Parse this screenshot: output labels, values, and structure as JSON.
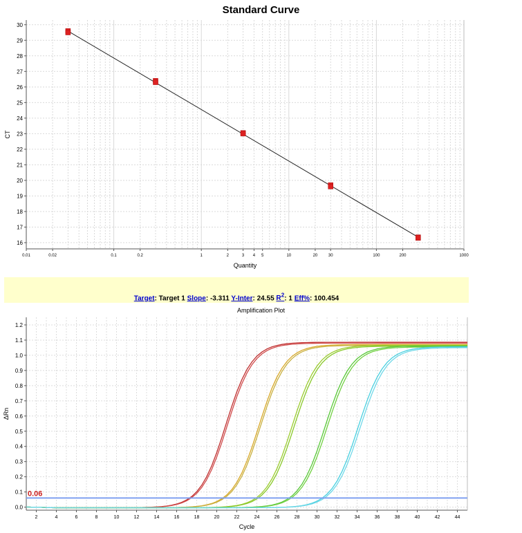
{
  "chart_data": [
    {
      "type": "scatter",
      "title": "Standard Curve",
      "xlabel": "Quantity",
      "ylabel": "CT",
      "xscale": "log",
      "xlim": [
        0.01,
        1000
      ],
      "ylim": [
        15.6,
        30.3
      ],
      "x_ticks": [
        "0.01",
        "0.02",
        "0.1",
        "0.2",
        "1",
        "2",
        "3",
        "4",
        "5",
        "10",
        "20",
        "30",
        "100",
        "200",
        "1000"
      ],
      "y_ticks": [
        "16",
        "17",
        "18",
        "19",
        "20",
        "21",
        "22",
        "23",
        "24",
        "25",
        "26",
        "27",
        "28",
        "29",
        "30"
      ],
      "grid": true,
      "series": [
        {
          "points": [
            {
              "x": 0.03,
              "y": 29.6
            },
            {
              "x": 0.03,
              "y": 29.5
            },
            {
              "x": 0.3,
              "y": 26.4
            },
            {
              "x": 0.3,
              "y": 26.3
            },
            {
              "x": 3,
              "y": 23.05
            },
            {
              "x": 3,
              "y": 23.0
            },
            {
              "x": 30,
              "y": 19.7
            },
            {
              "x": 30,
              "y": 19.6
            },
            {
              "x": 300,
              "y": 16.35
            },
            {
              "x": 300,
              "y": 16.3
            }
          ]
        }
      ],
      "fit_line": {
        "x": [
          0.03,
          300
        ],
        "y": [
          29.59,
          16.35
        ]
      },
      "colors": {
        "points": "#dd2222",
        "line": "#222222",
        "grid": "#d9d9d9"
      }
    },
    {
      "type": "line",
      "title": "Amplification Plot",
      "xlabel": "Cycle",
      "ylabel": "ΔRn",
      "xlim": [
        1,
        45
      ],
      "ylim": [
        -0.02,
        1.25
      ],
      "x_ticks": [
        "2",
        "4",
        "6",
        "8",
        "10",
        "12",
        "14",
        "16",
        "18",
        "20",
        "22",
        "24",
        "26",
        "28",
        "30",
        "32",
        "34",
        "36",
        "38",
        "40",
        "42",
        "44"
      ],
      "y_ticks": [
        "0.0",
        "0.1",
        "0.2",
        "0.3",
        "0.4",
        "0.5",
        "0.6",
        "0.7",
        "0.8",
        "0.9",
        "1.0",
        "1.1",
        "1.2"
      ],
      "grid": true,
      "threshold": {
        "value": 0.06,
        "label": "0.06",
        "color": "#7fa0f0"
      },
      "curve_groups": [
        {
          "color": "#c03030",
          "alt_color": "#d04a4a",
          "midpoints": [
            20.9,
            21.05
          ],
          "plateau": 1.09
        },
        {
          "color": "#d8a828",
          "alt_color": "#c8b040",
          "midpoints": [
            24.2,
            24.35
          ],
          "plateau": 1.075
        },
        {
          "color": "#9ccc30",
          "alt_color": "#88c828",
          "midpoints": [
            27.5,
            27.7
          ],
          "plateau": 1.07
        },
        {
          "color": "#58c838",
          "alt_color": "#70d040",
          "midpoints": [
            30.8,
            31.0
          ],
          "plateau": 1.065
        },
        {
          "color": "#48d0e0",
          "alt_color": "#70d8e8",
          "midpoints": [
            34.1,
            34.3
          ],
          "plateau": 1.06
        }
      ]
    }
  ],
  "stats": {
    "target_label": "Target",
    "target_value": ": Target 1 ",
    "slope_label": "Slope",
    "slope_value": ": -3.311 ",
    "yinter_label": "Y-Inter",
    "yinter_value": ": 24.55 ",
    "r2_label": "R",
    "r2_sup": "2",
    "r2_value": ": 1 ",
    "eff_label": "Eff%",
    "eff_value": ": 100.454"
  }
}
